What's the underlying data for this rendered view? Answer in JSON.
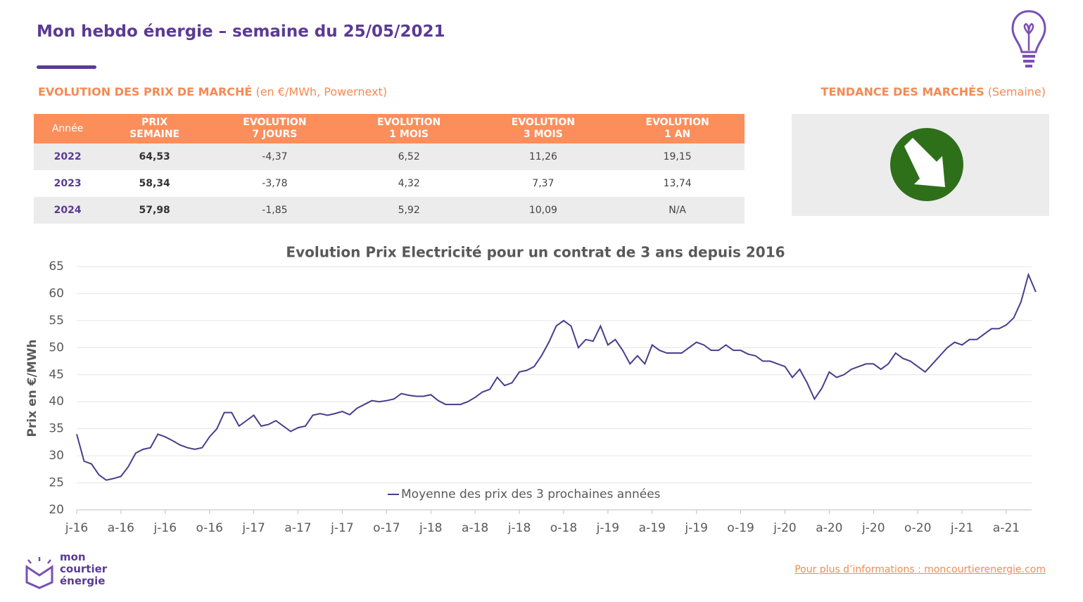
{
  "header": {
    "title": "Mon hebdo énergie – semaine du 25/05/2021"
  },
  "market_section": {
    "title": "EVOLUTION DES PRIX DE MARCHÉ",
    "subtitle": "(en €/MWh, Powernext)"
  },
  "trend_section": {
    "title": "TENDANCE DES MARCHÉS",
    "subtitle": "(Semaine)"
  },
  "table": {
    "columns": [
      "Année",
      "PRIX\nSEMAINE",
      "EVOLUTION\n7 JOURS",
      "EVOLUTION\n1 MOIS",
      "EVOLUTION\n3 MOIS",
      "EVOLUTION\n1 AN"
    ],
    "rows": [
      [
        "2022",
        "64,53",
        "-4,37",
        "6,52",
        "11,26",
        "19,15"
      ],
      [
        "2023",
        "58,34",
        "-3,78",
        "4,32",
        "7,37",
        "13,74"
      ],
      [
        "2024",
        "57,98",
        "-1,85",
        "5,92",
        "10,09",
        "N/A"
      ]
    ]
  },
  "chart_data": {
    "type": "line",
    "title": "Evolution Prix Electricité pour un contrat de 3 ans depuis 2016",
    "y_label": "Prix en €/MWh",
    "ylim": [
      20,
      65
    ],
    "yticks": [
      20,
      25,
      30,
      35,
      40,
      45,
      50,
      55,
      60,
      65
    ],
    "grid": true,
    "categories": [
      "j-16",
      null,
      null,
      null,
      null,
      null,
      "a-16",
      null,
      null,
      null,
      null,
      null,
      "j-16",
      null,
      null,
      null,
      null,
      null,
      "o-16",
      null,
      null,
      null,
      null,
      null,
      "j-17",
      null,
      null,
      null,
      null,
      null,
      "a-17",
      null,
      null,
      null,
      null,
      null,
      "j-17",
      null,
      null,
      null,
      null,
      null,
      "o-17",
      null,
      null,
      null,
      null,
      null,
      "j-18",
      null,
      null,
      null,
      null,
      null,
      "a-18",
      null,
      null,
      null,
      null,
      null,
      "j-18",
      null,
      null,
      null,
      null,
      null,
      "o-18",
      null,
      null,
      null,
      null,
      null,
      "j-19",
      null,
      null,
      null,
      null,
      null,
      "a-19",
      null,
      null,
      null,
      null,
      null,
      "j-19",
      null,
      null,
      null,
      null,
      null,
      "o-19",
      null,
      null,
      null,
      null,
      null,
      "j-20",
      null,
      null,
      null,
      null,
      null,
      "a-20",
      null,
      null,
      null,
      null,
      null,
      "j-20",
      null,
      null,
      null,
      null,
      null,
      "o-20",
      null,
      null,
      null,
      null,
      null,
      "j-21",
      null,
      null,
      null,
      null,
      null,
      "a-21",
      null,
      null,
      null,
      null
    ],
    "legend": "bottom",
    "series": [
      {
        "name": "Moyenne des prix des 3 prochaines années",
        "color": "#4b3c8c",
        "values": [
          34,
          29,
          28.5,
          26.5,
          25.5,
          25.8,
          26.2,
          28,
          30.5,
          31.2,
          31.5,
          34,
          33.5,
          32.8,
          32,
          31.5,
          31.2,
          31.5,
          33.5,
          35,
          38,
          38,
          35.5,
          36.5,
          37.5,
          35.5,
          35.8,
          36.5,
          35.5,
          34.5,
          35.2,
          35.5,
          37.5,
          37.8,
          37.5,
          37.8,
          38.2,
          37.6,
          38.8,
          39.5,
          40.2,
          40,
          40.2,
          40.5,
          41.5,
          41.2,
          41,
          41,
          41.3,
          40.2,
          39.5,
          39.5,
          39.5,
          40,
          40.8,
          41.8,
          42.3,
          44.5,
          43,
          43.5,
          45.5,
          45.8,
          46.5,
          48.5,
          51,
          54,
          55,
          54,
          50,
          51.5,
          51.2,
          54,
          50.5,
          51.5,
          49.5,
          47,
          48.5,
          47,
          50.5,
          49.5,
          49,
          49,
          49,
          50,
          51,
          50.5,
          49.5,
          49.5,
          50.5,
          49.5,
          49.5,
          48.8,
          48.5,
          47.5,
          47.5,
          47,
          46.5,
          44.5,
          46,
          43.5,
          40.5,
          42.5,
          45.5,
          44.5,
          45,
          46,
          46.5,
          47,
          47,
          46,
          47,
          49,
          48,
          47.5,
          46.5,
          45.5,
          47,
          48.5,
          50,
          51,
          50.5,
          51.5,
          51.5,
          52.5,
          53.5,
          53.5,
          54.2,
          55.5,
          58.5,
          63.5,
          60.3
        ]
      }
    ]
  },
  "logo": {
    "lines": [
      "mon",
      "courtier",
      "énergie"
    ]
  },
  "footer": {
    "link": "Pour plus d’informations : moncourtierenergie.com"
  }
}
